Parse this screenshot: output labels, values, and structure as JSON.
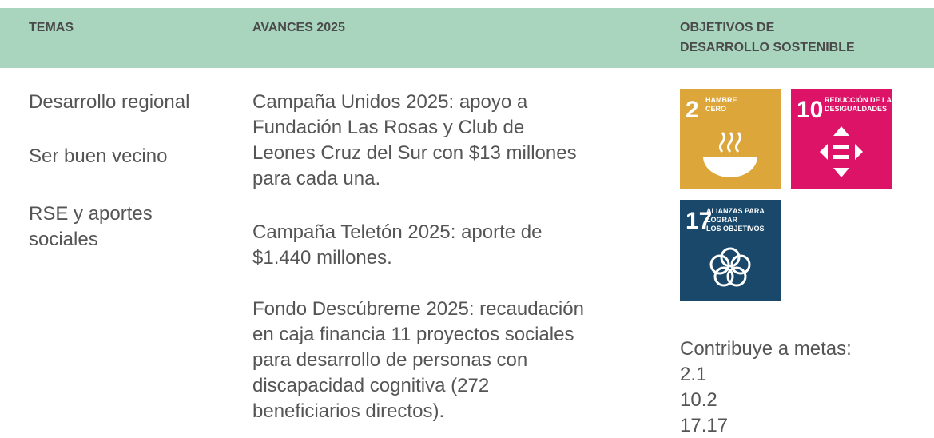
{
  "header": {
    "columns": [
      "TEMAS",
      "AVANCES 2025",
      [
        "OBJETIVOS DE",
        "DESARROLLO SOSTENIBLE"
      ]
    ]
  },
  "temas": [
    [
      "Desarrollo regional"
    ],
    [
      "Ser buen vecino"
    ],
    [
      "RSE y aportes",
      "sociales"
    ]
  ],
  "avances": [
    [
      "Campaña Unidos 2025: apoyo a",
      "Fundación Las Rosas y Club de",
      "Leones Cruz del Sur con $13 millones",
      "para cada una."
    ],
    [
      "Campaña Teletón 2025: aporte de",
      "$1.440 millones."
    ],
    [
      "Fondo Descúbreme 2025: recaudación",
      "en caja financia 11 proyectos sociales",
      "para desarrollo de personas con",
      "discapacidad cognitiva (272",
      "beneficiarios directos)."
    ]
  ],
  "ods": {
    "icons": [
      {
        "number": "2",
        "label": [
          "HAMBRE",
          "CERO"
        ]
      },
      {
        "number": "10",
        "label": [
          "REDUCCIÓN DE LAS",
          "DESIGUALDADES"
        ]
      },
      {
        "number": "17",
        "label": [
          "ALIANZAS PARA",
          "LOGRAR",
          "LOS OBJETIVOS"
        ]
      }
    ],
    "metas_title": "Contribuye a metas:",
    "metas": [
      "2.1",
      "10.2",
      "17.17"
    ]
  }
}
